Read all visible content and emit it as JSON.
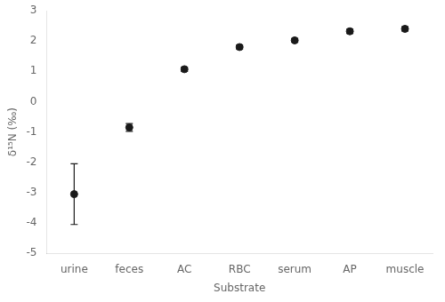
{
  "chart_data": {
    "type": "scatter",
    "categories": [
      "urine",
      "feces",
      "AC",
      "RBC",
      "serum",
      "AP",
      "muscle"
    ],
    "values": [
      -3.05,
      -0.85,
      1.07,
      1.8,
      2.02,
      2.32,
      2.4
    ],
    "errors": [
      1.0,
      0.13,
      0.07,
      0.06,
      0.06,
      0.07,
      0.07
    ],
    "color": "#1a1a1a",
    "marker": "circle",
    "ylim": [
      -5,
      3
    ],
    "yticks": [
      -5,
      -4,
      -3,
      -2,
      -1,
      0,
      1,
      2,
      3
    ],
    "xlabel": "Substrate",
    "ylabel": "δ¹⁵N (‰)",
    "grid": false
  }
}
